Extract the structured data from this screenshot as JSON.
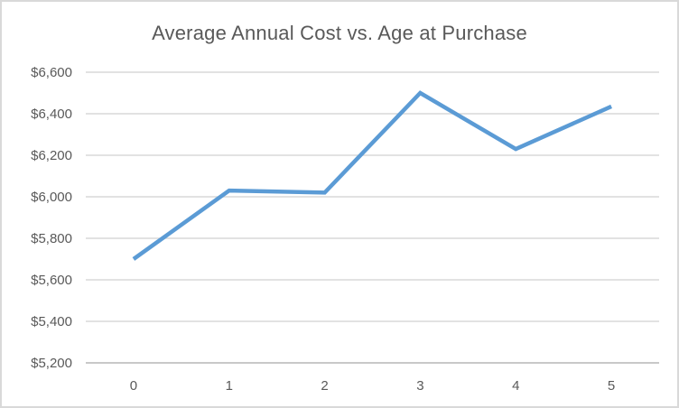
{
  "window": {
    "background_color": "#FFFFFF",
    "border_color": "#D9D9D9"
  },
  "chart_data": {
    "type": "line",
    "title": "Average Annual Cost vs. Age at Purchase",
    "categories": [
      "0",
      "1",
      "2",
      "3",
      "4",
      "5"
    ],
    "values": [
      5700,
      6030,
      6020,
      6500,
      6230,
      6435
    ],
    "xlabel": "",
    "ylabel": "",
    "ylim": [
      5200,
      6600
    ],
    "ytick_step": 200,
    "ytick_labels": [
      "$5,200",
      "$5,400",
      "$5,600",
      "$5,800",
      "$6,000",
      "$6,200",
      "$6,400",
      "$6,600"
    ],
    "xtick_labels": [
      "0",
      "1",
      "2",
      "3",
      "4",
      "5"
    ],
    "grid": true,
    "legend": "none",
    "line_color": "#5B9BD5",
    "gridline_color": "#D9D9D9",
    "axis_line_color": "#C8C8C8",
    "text_color": "#595959",
    "title_color": "#595959"
  }
}
